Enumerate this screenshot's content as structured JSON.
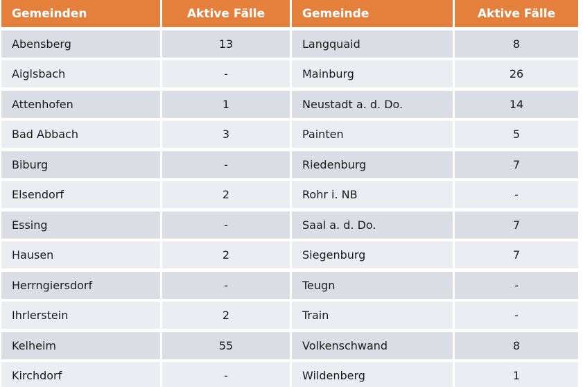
{
  "colors": {
    "header_bg": "#E5803C",
    "header_fg": "#FFFFFF",
    "row_odd": "#DBDDE5",
    "row_even": "#ECEDF2",
    "cell_text": "#1A1A1A"
  },
  "table": {
    "headers": [
      "Gemeinden",
      "Aktive Fälle",
      "Gemeinde",
      "Aktive Fälle"
    ],
    "rows": [
      {
        "g1": "Abensberg",
        "v1": "13",
        "g2": "Langquaid",
        "v2": "8"
      },
      {
        "g1": "Aiglsbach",
        "v1": "-",
        "g2": "Mainburg",
        "v2": "26"
      },
      {
        "g1": "Attenhofen",
        "v1": "1",
        "g2": "Neustadt a. d. Do.",
        "v2": "14"
      },
      {
        "g1": "Bad Abbach",
        "v1": "3",
        "g2": "Painten",
        "v2": "5"
      },
      {
        "g1": "Biburg",
        "v1": "-",
        "g2": "Riedenburg",
        "v2": "7"
      },
      {
        "g1": "Elsendorf",
        "v1": "2",
        "g2": "Rohr i. NB",
        "v2": "-"
      },
      {
        "g1": "Essing",
        "v1": "-",
        "g2": "Saal a. d. Do.",
        "v2": "7"
      },
      {
        "g1": "Hausen",
        "v1": "2",
        "g2": "Siegenburg",
        "v2": "7"
      },
      {
        "g1": "Herrngiersdorf",
        "v1": "-",
        "g2": "Teugn",
        "v2": "-"
      },
      {
        "g1": "Ihrlerstein",
        "v1": "2",
        "g2": "Train",
        "v2": "-"
      },
      {
        "g1": "Kelheim",
        "v1": "55",
        "g2": "Volkenschwand",
        "v2": "8"
      },
      {
        "g1": "Kirchdorf",
        "v1": "-",
        "g2": "Wildenberg",
        "v2": "1"
      }
    ]
  }
}
